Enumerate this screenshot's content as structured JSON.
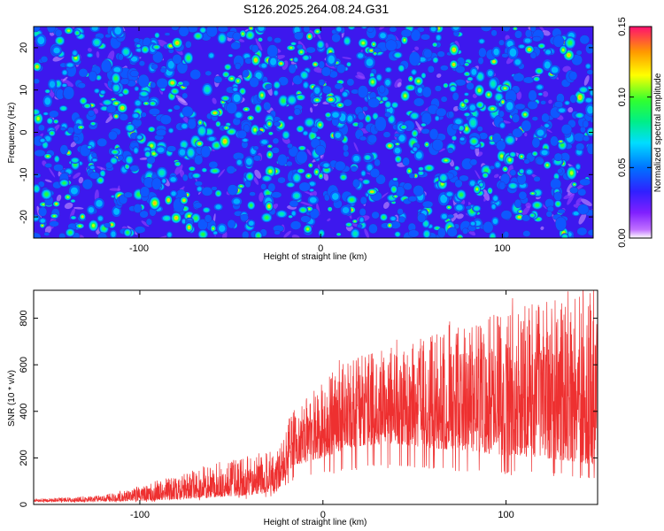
{
  "chart_data": [
    {
      "type": "heatmap",
      "title": "S126.2025.264.08.24.G31",
      "xlabel": "Height of straight line (km)",
      "ylabel": "Frequency (Hz)",
      "xlim": [
        -158,
        150
      ],
      "ylim": [
        -25,
        25
      ],
      "xticks": [
        -100,
        0,
        100
      ],
      "yticks": [
        -20,
        -10,
        0,
        10,
        20
      ],
      "colorbar": {
        "label": "Normalized spectral amplitude",
        "range": [
          0.0,
          0.15
        ],
        "ticks": [
          "0.00",
          "0.05",
          "0.10",
          "0.15"
        ]
      },
      "description_values": {
        "background_level": 0.025,
        "blob_level_range": [
          0.045,
          0.135
        ]
      }
    },
    {
      "type": "line",
      "xlabel": "Height of straight line (km)",
      "ylabel": "SNR (10 * v/v)",
      "xlim": [
        -158,
        150
      ],
      "ylim": [
        0,
        920
      ],
      "xticks": [
        -100,
        0,
        100
      ],
      "yticks": [
        0,
        200,
        400,
        600,
        800
      ],
      "series": [
        {
          "name": "SNR",
          "color": "#ee3030",
          "envelope": {
            "x": [
              -158,
              -120,
              -100,
              -80,
              -60,
              -40,
              -25,
              -20,
              -17,
              -10,
              0,
              10,
              20,
              40,
              60,
              80,
              100,
              120,
              140,
              150
            ],
            "baseline": [
              12,
              12,
              15,
              22,
              30,
              40,
              55,
              120,
              160,
              180,
              200,
              230,
              250,
              260,
              240,
              230,
              210,
              200,
              180,
              170
            ],
            "peak": [
              22,
              40,
              80,
              120,
              180,
              200,
              230,
              370,
              400,
              450,
              530,
              600,
              640,
              680,
              730,
              780,
              850,
              880,
              900,
              900
            ]
          }
        }
      ]
    }
  ]
}
